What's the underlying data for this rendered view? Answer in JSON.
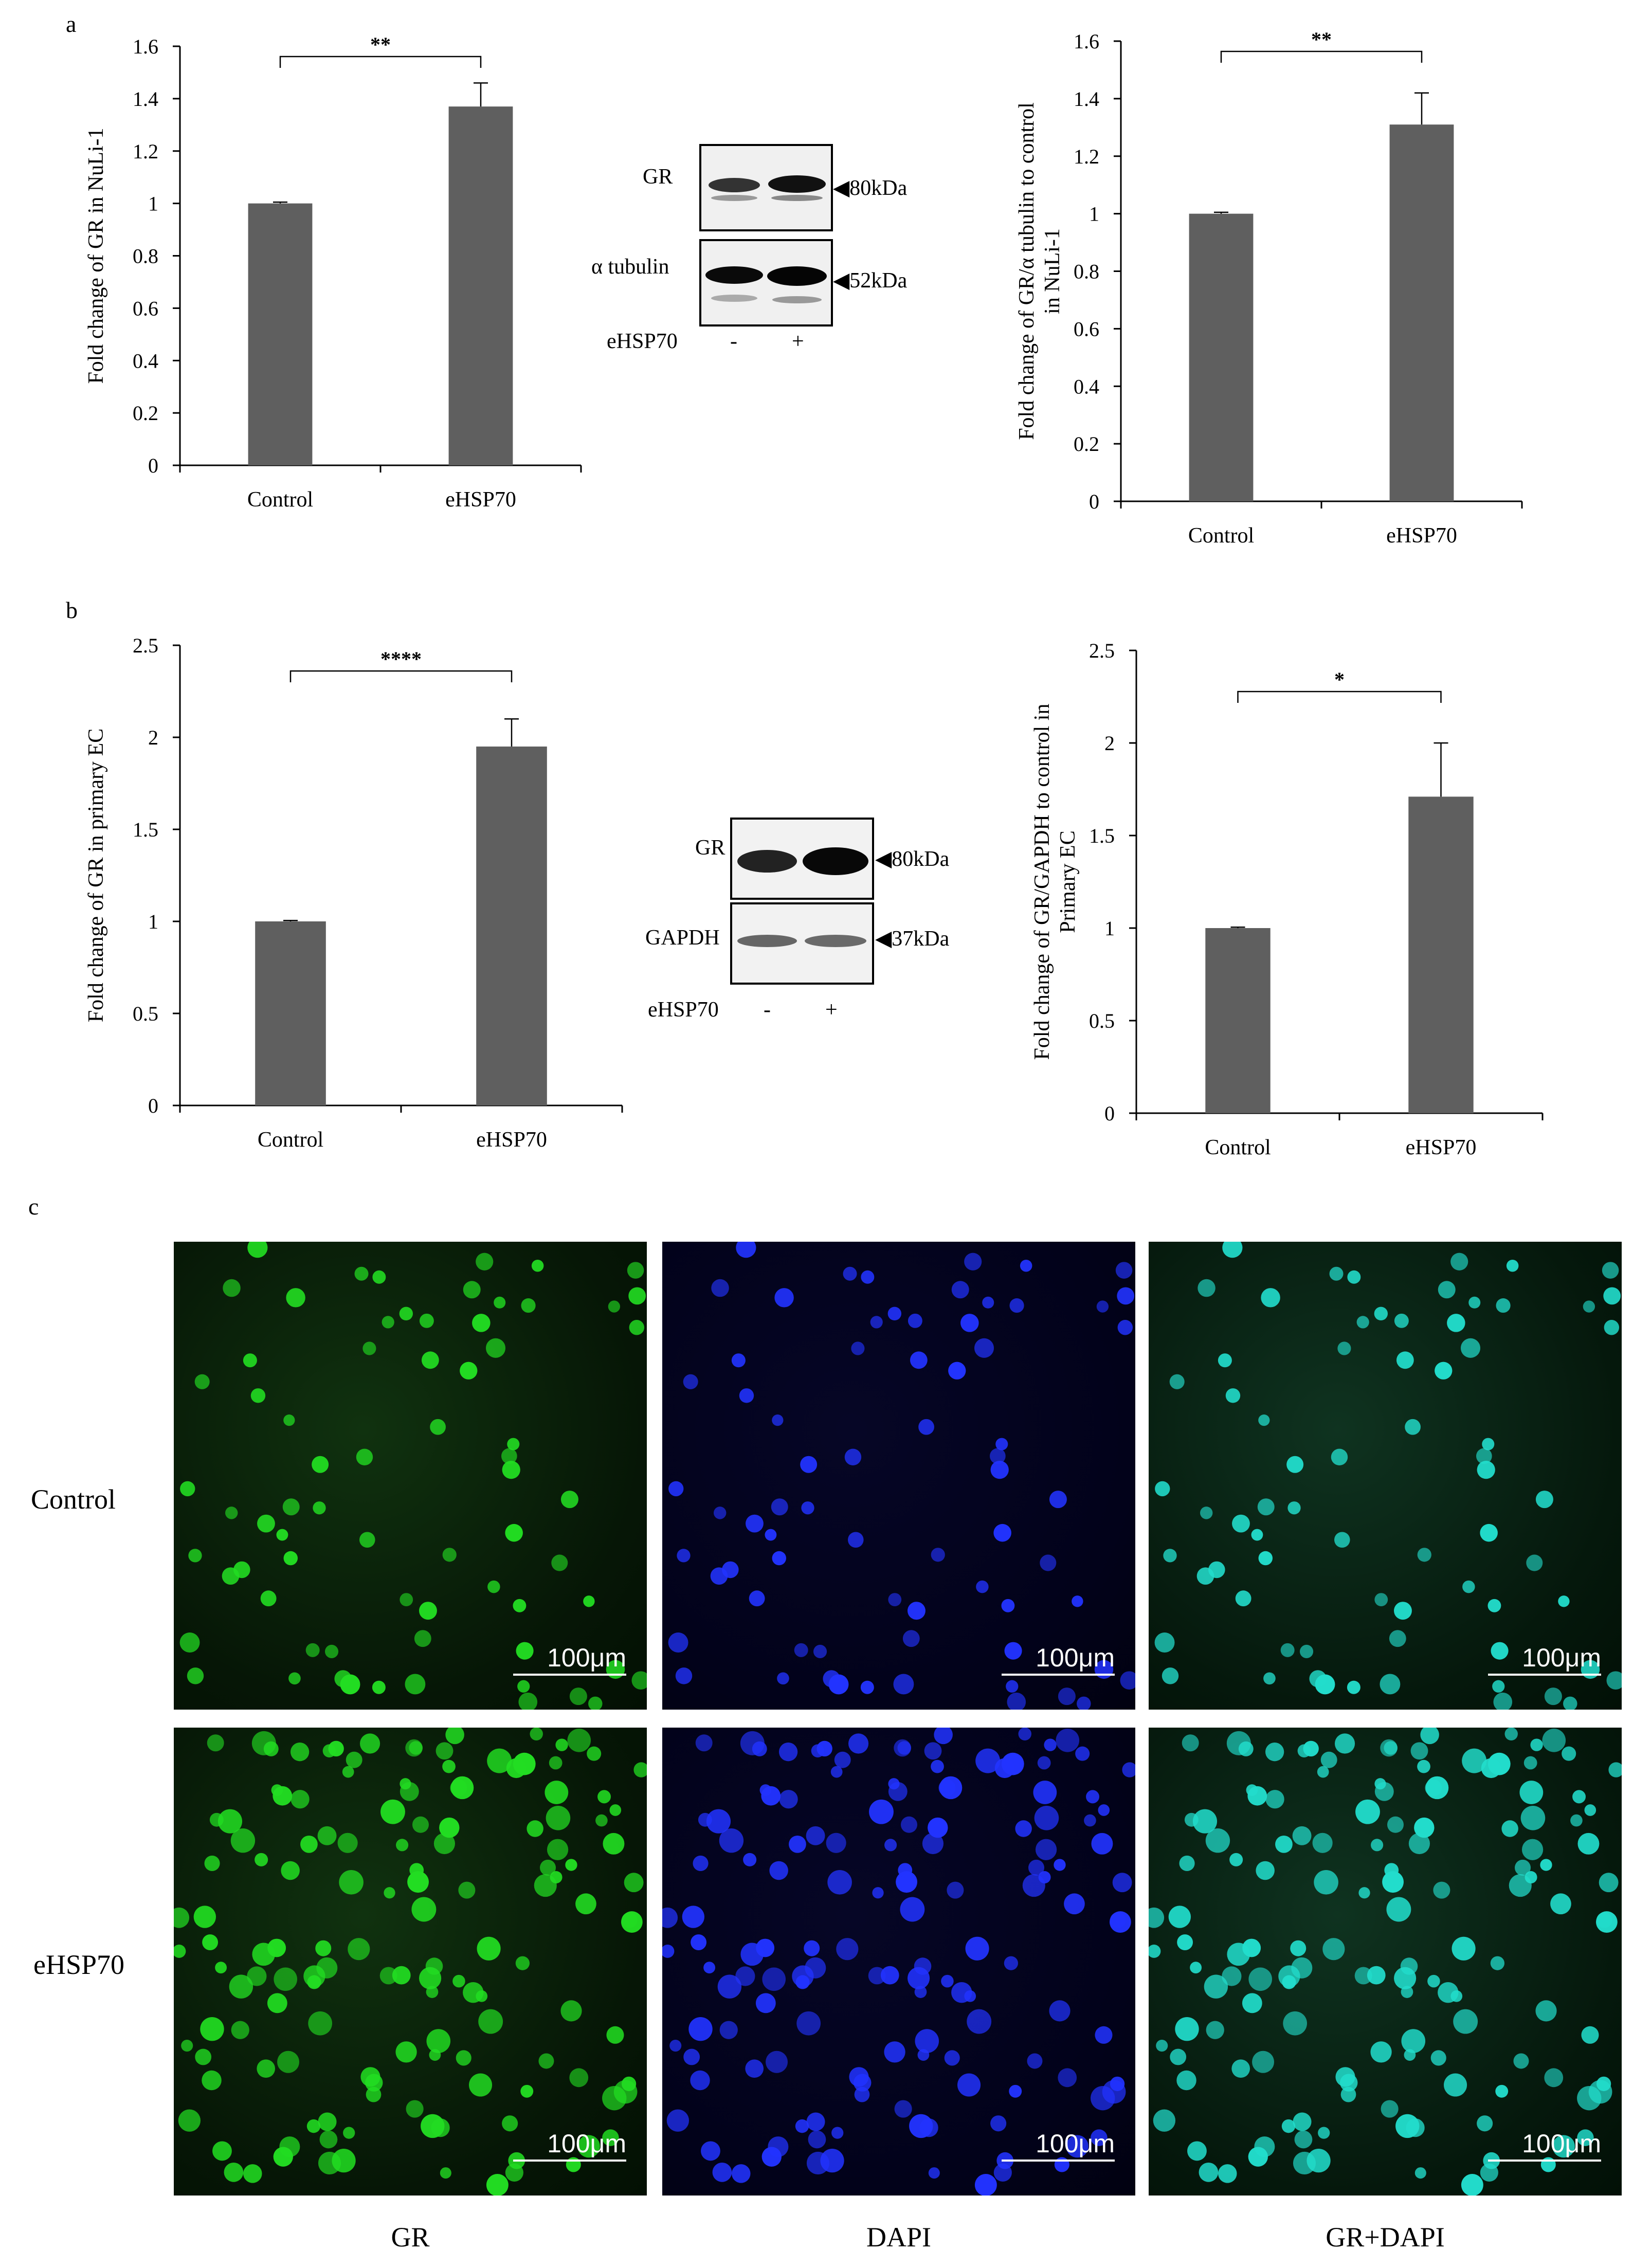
{
  "panels": {
    "a": "a",
    "b": "b",
    "c": "c"
  },
  "charts_meta": {
    "bar_color": "#5f5f5f"
  },
  "chart_data": [
    {
      "id": "a-left",
      "type": "bar",
      "categories": [
        "Control",
        "eHSP70"
      ],
      "values": [
        1.0,
        1.37
      ],
      "errors": [
        0.005,
        0.09
      ],
      "ylabel": "Fold change of GR in NuLi-1",
      "ylabel2": "",
      "ylim": [
        0,
        1.6
      ],
      "yticks": [
        "0",
        "0.2",
        "0.4",
        "0.6",
        "0.8",
        "1",
        "1.2",
        "1.4",
        "1.6"
      ],
      "yvals": [
        0,
        0.2,
        0.4,
        0.6,
        0.8,
        1.0,
        1.2,
        1.4,
        1.6
      ],
      "significance": "**",
      "grid": false
    },
    {
      "id": "a-right",
      "type": "bar",
      "categories": [
        "Control",
        "eHSP70"
      ],
      "values": [
        1.0,
        1.31
      ],
      "errors": [
        0.005,
        0.11
      ],
      "ylabel": "Fold change of GR/α tubulin to control",
      "ylabel2": "in NuLi-1",
      "ylim": [
        0,
        1.6
      ],
      "yticks": [
        "0",
        "0.2",
        "0.4",
        "0.6",
        "0.8",
        "1",
        "1.2",
        "1.4",
        "1.6"
      ],
      "yvals": [
        0,
        0.2,
        0.4,
        0.6,
        0.8,
        1.0,
        1.2,
        1.4,
        1.6
      ],
      "significance": "**",
      "grid": false
    },
    {
      "id": "b-left",
      "type": "bar",
      "categories": [
        "Control",
        "eHSP70"
      ],
      "values": [
        1.0,
        1.95
      ],
      "errors": [
        0.005,
        0.15
      ],
      "ylabel": "Fold change of GR in primary EC",
      "ylabel2": "",
      "ylim": [
        0,
        2.5
      ],
      "yticks": [
        "0",
        "0.5",
        "1",
        "1.5",
        "2",
        "2.5"
      ],
      "yvals": [
        0,
        0.5,
        1.0,
        1.5,
        2.0,
        2.5
      ],
      "significance": "****",
      "grid": false
    },
    {
      "id": "b-right",
      "type": "bar",
      "categories": [
        "Control",
        "eHSP70"
      ],
      "values": [
        1.0,
        1.71
      ],
      "errors": [
        0.005,
        0.29
      ],
      "ylabel": "Fold change of GR/GAPDH to control in",
      "ylabel2": "Primary EC",
      "ylim": [
        0,
        2.5
      ],
      "yticks": [
        "0",
        "0.5",
        "1",
        "1.5",
        "2",
        "2.5"
      ],
      "yvals": [
        0,
        0.5,
        1.0,
        1.5,
        2.0,
        2.5
      ],
      "significance": "*",
      "grid": false
    }
  ],
  "blots": {
    "a": {
      "top_label": "GR",
      "top_size": "◀80kDa",
      "bottom_label": "α tubulin",
      "bottom_size": "◀52kDa",
      "treatment_label": "eHSP70",
      "lane_minus": "-",
      "lane_plus": "+"
    },
    "b": {
      "top_label": "GR",
      "top_size": "◀80kDa",
      "bottom_label": "GAPDH",
      "bottom_size": "◀37kDa",
      "treatment_label": "eHSP70",
      "lane_minus": "-",
      "lane_plus": "+"
    }
  },
  "microscopy": {
    "rows": [
      "Control",
      "eHSP70"
    ],
    "columns": [
      "GR",
      "DAPI",
      "GR+DAPI"
    ],
    "scale_label": "100μm",
    "colors": {
      "gr": "#22dd22",
      "dapi": "#2233ff",
      "merge": "#22ddcc"
    }
  }
}
